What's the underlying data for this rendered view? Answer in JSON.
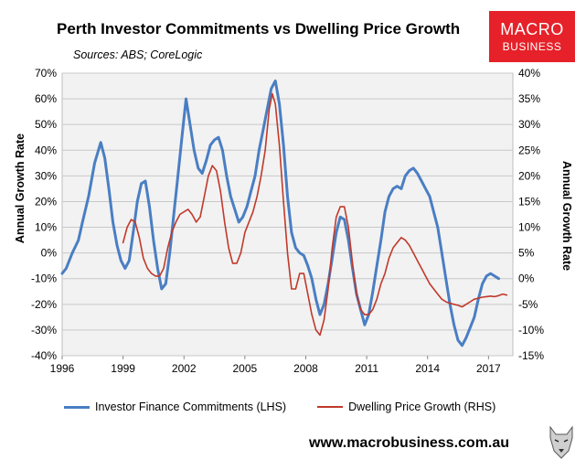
{
  "title": "Perth Investor Commitments vs Dwelling Price Growth",
  "sources": "Sources: ABS; CoreLogic",
  "logo": {
    "line1": "MACRO",
    "line2": "BUSINESS"
  },
  "footer_url": "www.macrobusiness.com.au",
  "colors": {
    "investor": "#4a7ec3",
    "dwelling": "#c0392b",
    "logo_bg": "#e62129"
  },
  "chart_data": {
    "type": "line",
    "title": "Perth Investor Commitments vs Dwelling Price Growth",
    "ylabel_left": "Annual Growth Rate",
    "ylabel_right": "Annual Growth Rate",
    "xlim": [
      1996,
      2018.2
    ],
    "ylim_left": [
      -40,
      70
    ],
    "ylim_right": [
      -15,
      40
    ],
    "x_ticks": [
      1996,
      1999,
      2002,
      2005,
      2008,
      2011,
      2014,
      2017
    ],
    "x_tick_labels": [
      "1996",
      "1999",
      "2002",
      "2005",
      "2008",
      "2011",
      "2014",
      "2017"
    ],
    "y_ticks_left": [
      -40,
      -30,
      -20,
      -10,
      0,
      10,
      20,
      30,
      40,
      50,
      60,
      70
    ],
    "y_tick_labels_left": [
      "-40%",
      "-30%",
      "-20%",
      "-10%",
      "0%",
      "10%",
      "20%",
      "30%",
      "40%",
      "50%",
      "60%",
      "70%"
    ],
    "y_ticks_right": [
      -15,
      -10,
      -5,
      0,
      5,
      10,
      15,
      20,
      25,
      30,
      35,
      40
    ],
    "y_tick_labels_right": [
      "-15%",
      "-10%",
      "-5%",
      "0%",
      "5%",
      "10%",
      "15%",
      "20%",
      "25%",
      "30%",
      "35%",
      "40%"
    ],
    "grid": "horizontal",
    "legend_position": "bottom",
    "series": [
      {
        "name": "Investor Finance Commitments (LHS)",
        "axis": "left",
        "points": [
          [
            1996.0,
            -8
          ],
          [
            1996.2,
            -6
          ],
          [
            1996.5,
            0
          ],
          [
            1996.8,
            5
          ],
          [
            1997.0,
            12
          ],
          [
            1997.3,
            22
          ],
          [
            1997.6,
            35
          ],
          [
            1997.9,
            43
          ],
          [
            1998.1,
            37
          ],
          [
            1998.3,
            25
          ],
          [
            1998.5,
            12
          ],
          [
            1998.7,
            3
          ],
          [
            1998.9,
            -3
          ],
          [
            1999.1,
            -6
          ],
          [
            1999.3,
            -3
          ],
          [
            1999.5,
            8
          ],
          [
            1999.7,
            20
          ],
          [
            1999.9,
            27
          ],
          [
            2000.1,
            28
          ],
          [
            2000.3,
            18
          ],
          [
            2000.5,
            5
          ],
          [
            2000.7,
            -6
          ],
          [
            2000.9,
            -14
          ],
          [
            2001.1,
            -12
          ],
          [
            2001.3,
            0
          ],
          [
            2001.5,
            15
          ],
          [
            2001.7,
            30
          ],
          [
            2001.9,
            45
          ],
          [
            2002.1,
            60
          ],
          [
            2002.3,
            50
          ],
          [
            2002.5,
            40
          ],
          [
            2002.7,
            33
          ],
          [
            2002.9,
            31
          ],
          [
            2003.1,
            36
          ],
          [
            2003.3,
            42
          ],
          [
            2003.5,
            44
          ],
          [
            2003.7,
            45
          ],
          [
            2003.9,
            40
          ],
          [
            2004.1,
            30
          ],
          [
            2004.3,
            22
          ],
          [
            2004.5,
            17
          ],
          [
            2004.7,
            12
          ],
          [
            2004.9,
            14
          ],
          [
            2005.1,
            18
          ],
          [
            2005.3,
            24
          ],
          [
            2005.5,
            30
          ],
          [
            2005.7,
            40
          ],
          [
            2005.9,
            48
          ],
          [
            2006.1,
            56
          ],
          [
            2006.3,
            64
          ],
          [
            2006.5,
            67
          ],
          [
            2006.7,
            58
          ],
          [
            2006.9,
            42
          ],
          [
            2007.1,
            22
          ],
          [
            2007.3,
            8
          ],
          [
            2007.5,
            2
          ],
          [
            2007.7,
            0
          ],
          [
            2007.9,
            -1
          ],
          [
            2008.1,
            -5
          ],
          [
            2008.3,
            -10
          ],
          [
            2008.5,
            -18
          ],
          [
            2008.7,
            -24
          ],
          [
            2008.9,
            -20
          ],
          [
            2009.1,
            -12
          ],
          [
            2009.3,
            -2
          ],
          [
            2009.5,
            8
          ],
          [
            2009.7,
            14
          ],
          [
            2009.9,
            13
          ],
          [
            2010.1,
            5
          ],
          [
            2010.3,
            -6
          ],
          [
            2010.5,
            -16
          ],
          [
            2010.7,
            -22
          ],
          [
            2010.9,
            -28
          ],
          [
            2011.1,
            -24
          ],
          [
            2011.3,
            -15
          ],
          [
            2011.5,
            -5
          ],
          [
            2011.7,
            5
          ],
          [
            2011.9,
            16
          ],
          [
            2012.1,
            22
          ],
          [
            2012.3,
            25
          ],
          [
            2012.5,
            26
          ],
          [
            2012.7,
            25
          ],
          [
            2012.9,
            30
          ],
          [
            2013.1,
            32
          ],
          [
            2013.3,
            33
          ],
          [
            2013.5,
            31
          ],
          [
            2013.7,
            28
          ],
          [
            2013.9,
            25
          ],
          [
            2014.1,
            22
          ],
          [
            2014.3,
            16
          ],
          [
            2014.5,
            10
          ],
          [
            2014.7,
            0
          ],
          [
            2014.9,
            -10
          ],
          [
            2015.1,
            -20
          ],
          [
            2015.3,
            -28
          ],
          [
            2015.5,
            -34
          ],
          [
            2015.7,
            -36
          ],
          [
            2015.9,
            -33
          ],
          [
            2016.1,
            -29
          ],
          [
            2016.3,
            -25
          ],
          [
            2016.5,
            -18
          ],
          [
            2016.7,
            -12
          ],
          [
            2016.9,
            -9
          ],
          [
            2017.1,
            -8
          ],
          [
            2017.3,
            -9
          ],
          [
            2017.5,
            -10
          ]
        ]
      },
      {
        "name": "Dwelling Price Growth (RHS)",
        "axis": "right",
        "points": [
          [
            1999.0,
            7
          ],
          [
            1999.2,
            10
          ],
          [
            1999.4,
            11.5
          ],
          [
            1999.6,
            11
          ],
          [
            1999.8,
            8
          ],
          [
            2000.0,
            4
          ],
          [
            2000.2,
            2
          ],
          [
            2000.4,
            1
          ],
          [
            2000.6,
            0.5
          ],
          [
            2000.8,
            0.5
          ],
          [
            2001.0,
            2
          ],
          [
            2001.2,
            6
          ],
          [
            2001.4,
            9
          ],
          [
            2001.6,
            11
          ],
          [
            2001.8,
            12.5
          ],
          [
            2002.0,
            13
          ],
          [
            2002.2,
            13.5
          ],
          [
            2002.4,
            12.5
          ],
          [
            2002.6,
            11
          ],
          [
            2002.8,
            12
          ],
          [
            2003.0,
            16
          ],
          [
            2003.2,
            20
          ],
          [
            2003.4,
            22
          ],
          [
            2003.6,
            21
          ],
          [
            2003.8,
            17
          ],
          [
            2004.0,
            11
          ],
          [
            2004.2,
            6
          ],
          [
            2004.4,
            3
          ],
          [
            2004.6,
            3
          ],
          [
            2004.8,
            5
          ],
          [
            2005.0,
            9
          ],
          [
            2005.2,
            11
          ],
          [
            2005.4,
            13
          ],
          [
            2005.6,
            16
          ],
          [
            2005.8,
            20
          ],
          [
            2006.0,
            25
          ],
          [
            2006.2,
            33
          ],
          [
            2006.35,
            36
          ],
          [
            2006.5,
            34
          ],
          [
            2006.7,
            26
          ],
          [
            2006.9,
            15
          ],
          [
            2007.1,
            5
          ],
          [
            2007.3,
            -2
          ],
          [
            2007.5,
            -2
          ],
          [
            2007.7,
            1
          ],
          [
            2007.9,
            1
          ],
          [
            2008.1,
            -3
          ],
          [
            2008.3,
            -7
          ],
          [
            2008.5,
            -10
          ],
          [
            2008.7,
            -11
          ],
          [
            2008.9,
            -8
          ],
          [
            2009.1,
            -2
          ],
          [
            2009.3,
            6
          ],
          [
            2009.5,
            12
          ],
          [
            2009.7,
            14
          ],
          [
            2009.9,
            14
          ],
          [
            2010.1,
            10
          ],
          [
            2010.3,
            3
          ],
          [
            2010.5,
            -3
          ],
          [
            2010.7,
            -6
          ],
          [
            2010.9,
            -7
          ],
          [
            2011.1,
            -7
          ],
          [
            2011.3,
            -6
          ],
          [
            2011.5,
            -4
          ],
          [
            2011.7,
            -1
          ],
          [
            2011.9,
            1
          ],
          [
            2012.1,
            4
          ],
          [
            2012.3,
            6
          ],
          [
            2012.5,
            7
          ],
          [
            2012.7,
            8
          ],
          [
            2012.9,
            7.5
          ],
          [
            2013.1,
            6.5
          ],
          [
            2013.3,
            5
          ],
          [
            2013.5,
            3.5
          ],
          [
            2013.7,
            2
          ],
          [
            2013.9,
            0.5
          ],
          [
            2014.1,
            -1
          ],
          [
            2014.3,
            -2
          ],
          [
            2014.5,
            -3
          ],
          [
            2014.7,
            -4
          ],
          [
            2014.9,
            -4.5
          ],
          [
            2015.1,
            -4.8
          ],
          [
            2015.3,
            -5
          ],
          [
            2015.5,
            -5.2
          ],
          [
            2015.7,
            -5.5
          ],
          [
            2015.9,
            -5
          ],
          [
            2016.1,
            -4.5
          ],
          [
            2016.3,
            -4
          ],
          [
            2016.5,
            -3.8
          ],
          [
            2016.7,
            -3.6
          ],
          [
            2016.9,
            -3.5
          ],
          [
            2017.1,
            -3.4
          ],
          [
            2017.3,
            -3.5
          ],
          [
            2017.5,
            -3.3
          ],
          [
            2017.7,
            -3.0
          ],
          [
            2017.9,
            -3.2
          ]
        ]
      }
    ]
  }
}
